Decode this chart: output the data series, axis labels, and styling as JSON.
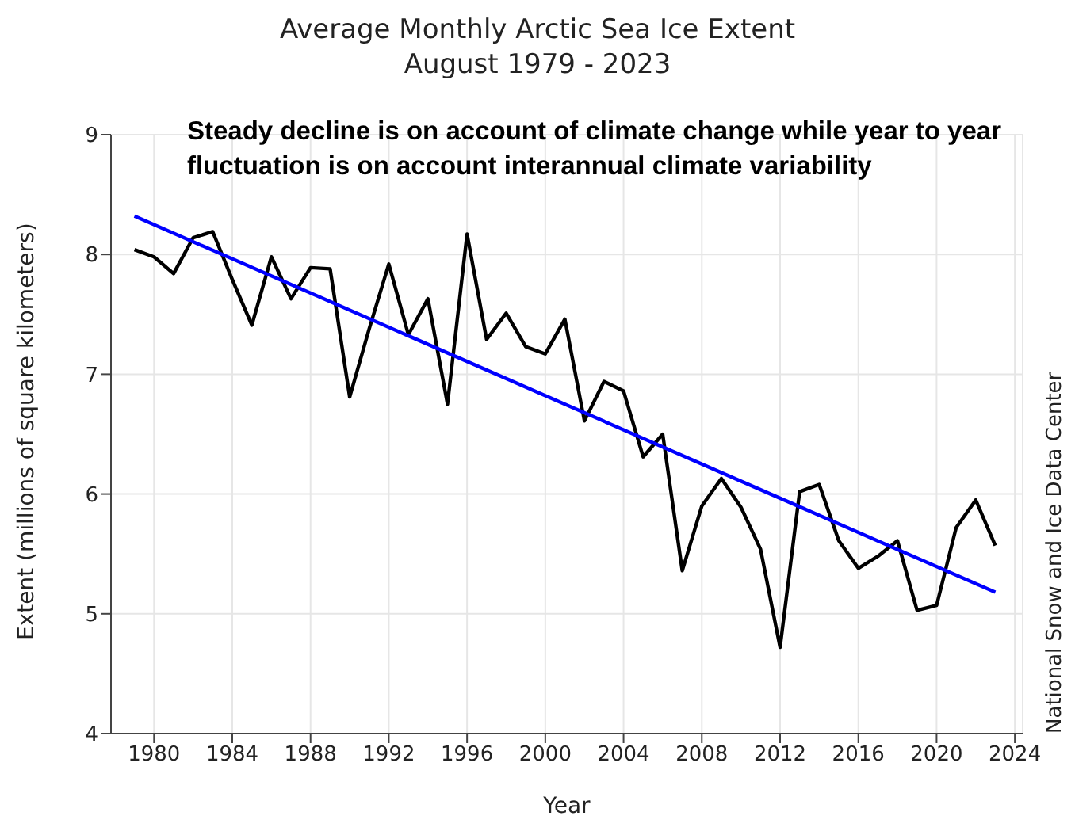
{
  "chart_data": {
    "type": "line",
    "title": "Average Monthly Arctic Sea Ice Extent",
    "subtitle": "August 1979 - 2023",
    "xlabel": "Year",
    "ylabel": "Extent (millions of square kilometers)",
    "annotations": [
      "Steady decline is on  account of climate change while year to year fluctuation is on account interannual  climate variability",
      "National Snow and Ice Data Center"
    ],
    "x": [
      1979,
      1980,
      1981,
      1982,
      1983,
      1984,
      1985,
      1986,
      1987,
      1988,
      1989,
      1990,
      1991,
      1992,
      1993,
      1994,
      1995,
      1996,
      1997,
      1998,
      1999,
      2000,
      2001,
      2002,
      2003,
      2004,
      2005,
      2006,
      2007,
      2008,
      2009,
      2010,
      2011,
      2012,
      2013,
      2014,
      2015,
      2016,
      2017,
      2018,
      2019,
      2020,
      2021,
      2022,
      2023
    ],
    "series": [
      {
        "color": "#000000",
        "values": [
          8.04,
          7.98,
          7.84,
          8.14,
          8.19,
          7.79,
          7.41,
          7.98,
          7.63,
          7.89,
          7.88,
          6.81,
          7.38,
          7.92,
          7.33,
          7.63,
          6.75,
          8.17,
          7.29,
          7.51,
          7.23,
          7.17,
          7.46,
          6.61,
          6.94,
          6.86,
          6.31,
          6.5,
          5.36,
          5.9,
          6.13,
          5.89,
          5.54,
          4.72,
          6.02,
          6.08,
          5.61,
          5.38,
          5.48,
          5.61,
          5.03,
          5.07,
          5.72,
          5.95,
          5.57
        ]
      },
      {
        "color": "#0000ff",
        "x": [
          1979,
          2023
        ],
        "values": [
          8.32,
          5.18
        ]
      }
    ],
    "xlim": [
      1977.8,
      2024.4
    ],
    "xticks": [
      1980,
      1984,
      1988,
      1992,
      1996,
      2000,
      2004,
      2008,
      2012,
      2016,
      2020,
      2024
    ],
    "ylim": [
      4,
      9
    ],
    "yticks": [
      4,
      5,
      6,
      7,
      8,
      9
    ],
    "grid": true,
    "marker": "none",
    "line_style": "solid"
  }
}
